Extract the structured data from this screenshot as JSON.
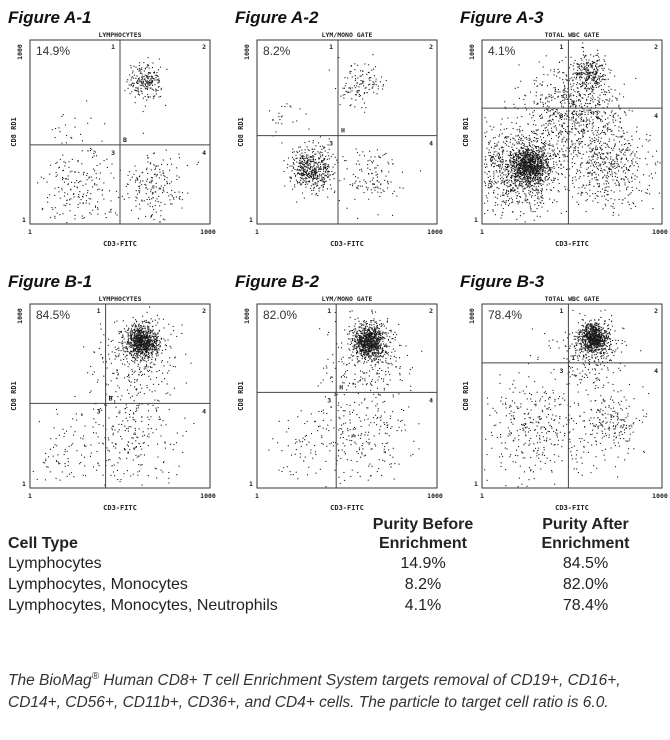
{
  "chart_data": [
    {
      "type": "scatter",
      "id": "A-1",
      "figure_label": "Figure A-1",
      "gate_title": "LYMPHOCYTES",
      "percent_label": "14.9%",
      "xlabel": "CD3-FITC",
      "ylabel": "CD8 RD1",
      "x_ticks": [
        "1",
        "1000"
      ],
      "y_ticks": [
        "1000",
        "1"
      ],
      "quadrants": [
        "1",
        "2",
        "3",
        "4"
      ],
      "gate_marker": "B",
      "divider": {
        "x": 0.5,
        "y": 0.57
      },
      "clusters": [
        {
          "x": 0.64,
          "y": 0.22,
          "spread": 0.05,
          "count": 220
        },
        {
          "x": 0.26,
          "y": 0.82,
          "spread": 0.11,
          "count": 200
        },
        {
          "x": 0.7,
          "y": 0.8,
          "spread": 0.09,
          "count": 200
        },
        {
          "x": 0.25,
          "y": 0.48,
          "spread": 0.08,
          "count": 25
        }
      ]
    },
    {
      "type": "scatter",
      "id": "A-2",
      "figure_label": "Figure A-2",
      "gate_title": "LYM/MONO GATE",
      "percent_label": "8.2%",
      "xlabel": "CD3-FITC",
      "ylabel": "CD8 RD1",
      "x_ticks": [
        "1",
        "1000"
      ],
      "y_ticks": [
        "1000",
        "1"
      ],
      "quadrants": [
        "1",
        "2",
        "3",
        "4"
      ],
      "gate_marker": "H",
      "divider": {
        "x": 0.45,
        "y": 0.52
      },
      "clusters": [
        {
          "x": 0.58,
          "y": 0.24,
          "spread": 0.06,
          "count": 120
        },
        {
          "x": 0.3,
          "y": 0.7,
          "spread": 0.06,
          "count": 500
        },
        {
          "x": 0.65,
          "y": 0.75,
          "spread": 0.08,
          "count": 120
        },
        {
          "x": 0.15,
          "y": 0.45,
          "spread": 0.06,
          "count": 25
        }
      ]
    },
    {
      "type": "scatter",
      "id": "A-3",
      "figure_label": "Figure A-3",
      "gate_title": "TOTAL WBC GATE",
      "percent_label": "4.1%",
      "xlabel": "CD3-FITC",
      "ylabel": "CD8 RD1",
      "x_ticks": [
        "1",
        "1000"
      ],
      "y_ticks": [
        "1000",
        "1"
      ],
      "quadrants": [
        "1",
        "2",
        "3",
        "4"
      ],
      "gate_marker": "I",
      "divider": {
        "x": 0.48,
        "y": 0.37
      },
      "clusters": [
        {
          "x": 0.26,
          "y": 0.68,
          "spread": 0.05,
          "count": 900
        },
        {
          "x": 0.2,
          "y": 0.7,
          "spread": 0.13,
          "count": 900
        },
        {
          "x": 0.5,
          "y": 0.38,
          "spread": 0.13,
          "count": 700
        },
        {
          "x": 0.6,
          "y": 0.18,
          "spread": 0.05,
          "count": 260
        },
        {
          "x": 0.7,
          "y": 0.68,
          "spread": 0.12,
          "count": 500
        }
      ]
    },
    {
      "type": "scatter",
      "id": "B-1",
      "figure_label": "Figure B-1",
      "gate_title": "LYMPHOCYTES",
      "percent_label": "84.5%",
      "xlabel": "CD3-FITC",
      "ylabel": "CD8 RD1",
      "x_ticks": [
        "1",
        "1000"
      ],
      "y_ticks": [
        "1000",
        "1"
      ],
      "quadrants": [
        "1",
        "2",
        "3",
        "4"
      ],
      "gate_marker": "B",
      "divider": {
        "x": 0.42,
        "y": 0.54
      },
      "clusters": [
        {
          "x": 0.62,
          "y": 0.2,
          "spread": 0.045,
          "count": 900
        },
        {
          "x": 0.6,
          "y": 0.32,
          "spread": 0.12,
          "count": 250
        },
        {
          "x": 0.55,
          "y": 0.72,
          "spread": 0.14,
          "count": 260
        },
        {
          "x": 0.2,
          "y": 0.8,
          "spread": 0.1,
          "count": 70
        }
      ]
    },
    {
      "type": "scatter",
      "id": "B-2",
      "figure_label": "Figure B-2",
      "gate_title": "LYM/MONO GATE",
      "percent_label": "82.0%",
      "xlabel": "CD3-FITC",
      "ylabel": "CD8 RD1",
      "x_ticks": [
        "1",
        "1000"
      ],
      "y_ticks": [
        "1000",
        "1"
      ],
      "quadrants": [
        "1",
        "2",
        "3",
        "4"
      ],
      "gate_marker": "H",
      "divider": {
        "x": 0.44,
        "y": 0.48
      },
      "clusters": [
        {
          "x": 0.62,
          "y": 0.2,
          "spread": 0.045,
          "count": 850
        },
        {
          "x": 0.6,
          "y": 0.3,
          "spread": 0.12,
          "count": 250
        },
        {
          "x": 0.58,
          "y": 0.7,
          "spread": 0.13,
          "count": 240
        },
        {
          "x": 0.22,
          "y": 0.78,
          "spread": 0.1,
          "count": 60
        }
      ]
    },
    {
      "type": "scatter",
      "id": "B-3",
      "figure_label": "Figure B-3",
      "gate_title": "TOTAL WBC GATE",
      "percent_label": "78.4%",
      "xlabel": "CD3-FITC",
      "ylabel": "CD8 RD1",
      "x_ticks": [
        "1",
        "1000"
      ],
      "y_ticks": [
        "1000",
        "1"
      ],
      "quadrants": [
        "1",
        "2",
        "3",
        "4"
      ],
      "gate_marker": "I",
      "divider": {
        "x": 0.48,
        "y": 0.32
      },
      "clusters": [
        {
          "x": 0.62,
          "y": 0.18,
          "spread": 0.04,
          "count": 800
        },
        {
          "x": 0.6,
          "y": 0.28,
          "spread": 0.1,
          "count": 220
        },
        {
          "x": 0.32,
          "y": 0.68,
          "spread": 0.15,
          "count": 380
        },
        {
          "x": 0.72,
          "y": 0.65,
          "spread": 0.08,
          "count": 200
        }
      ]
    }
  ],
  "table": {
    "headers": [
      "Cell Type",
      "Purity Before Enrichment",
      "Purity After Enrichment"
    ],
    "header_line1": [
      "",
      "Purity Before",
      "Purity After"
    ],
    "header_line2": [
      "Cell Type",
      "Enrichment",
      "Enrichment"
    ],
    "rows": [
      [
        "Lymphocytes",
        "14.9%",
        "84.5%"
      ],
      [
        "Lymphocytes, Monocytes",
        "8.2%",
        "82.0%"
      ],
      [
        "Lymphocytes, Monocytes, Neutrophils",
        "4.1%",
        "78.4%"
      ]
    ]
  },
  "caption": {
    "brand": "The BioMag",
    "registered_mark": "®",
    "text": " Human CD8+ T cell Enrichment System targets removal of CD19+, CD16+, CD14+, CD56+, CD11b+, CD36+, and CD4+ cells. The particle to target cell ratio is 6.0."
  }
}
